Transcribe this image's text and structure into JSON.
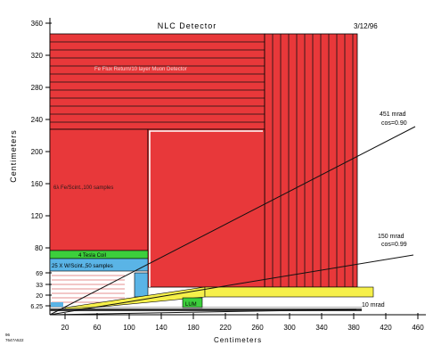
{
  "diagram": {
    "title": "NLC Detector",
    "date": "3/12/96",
    "y_axis_label": "Centimeters",
    "x_axis_label": "Centimeters",
    "y_ticks": [
      "360",
      "320",
      "280",
      "240",
      "200",
      "160",
      "120",
      "80",
      "69",
      "33",
      "20",
      "6.25"
    ],
    "x_ticks": [
      "20",
      "60",
      "100",
      "140",
      "180",
      "220",
      "260",
      "300",
      "340",
      "380",
      "420",
      "460"
    ],
    "regions": {
      "muon": "Fe Flux Return/10 layer Muon Detector",
      "hcal": "6λ Fe/Scint.,100 samples",
      "coil": "4 Tesla Coil",
      "ecal": "25 X W/Scint.,50 samples",
      "lum": "LUM"
    },
    "angles": {
      "a451_line1": "451 mrad",
      "a451_line2": "cos=0.90",
      "a150_line1": "150 mrad",
      "a150_line2": "cos=0.99",
      "a10": "10 mrad"
    },
    "footnote_line1": "96",
    "footnote_line2": "7647A522"
  },
  "colors": {
    "iron": "#e8383a",
    "coil": "#3ccf3c",
    "ecal": "#5ab4e6",
    "yellow": "#f6f04a",
    "dark": "#3a3a3a"
  }
}
